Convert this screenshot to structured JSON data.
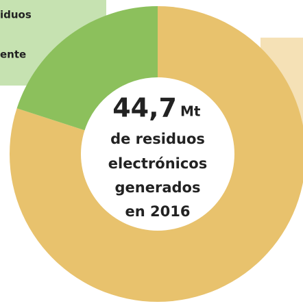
{
  "chart_data": {
    "type": "donut",
    "legend_texts": [
      "iduos",
      "ente"
    ],
    "center": {
      "value": "44,7",
      "unit": "Mt",
      "lines": [
        "de residuos",
        "electrónicos",
        "generados",
        "en 2016"
      ]
    },
    "categories": [
      null,
      null
    ],
    "values": [
      80,
      20
    ],
    "colors": [
      "#e8c26d",
      "#8cc05c"
    ]
  }
}
